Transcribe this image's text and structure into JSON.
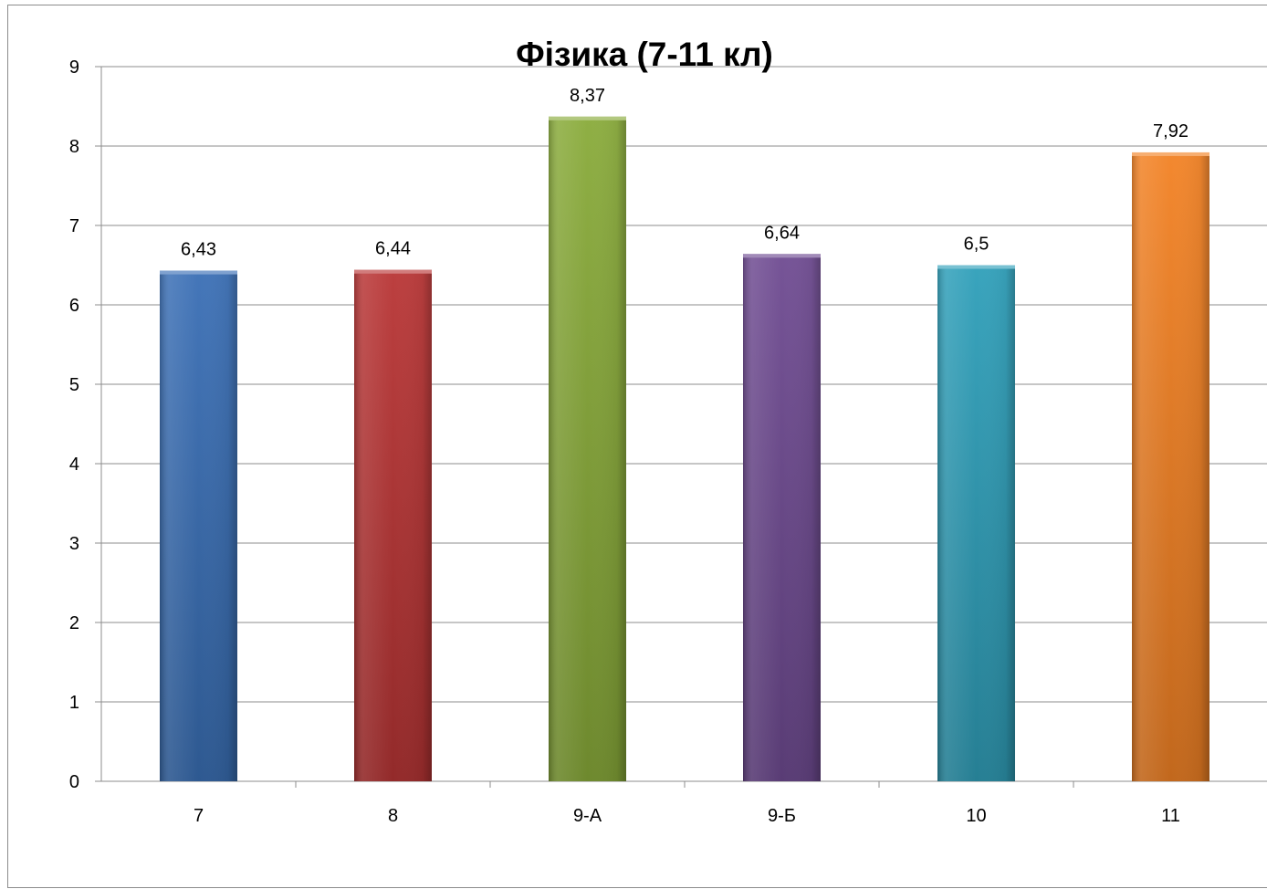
{
  "chart_data": {
    "type": "bar",
    "title": "Фізика (7-11 кл)",
    "xlabel": "",
    "ylabel": "",
    "categories": [
      "7",
      "8",
      "9-А",
      "9-Б",
      "10",
      "11"
    ],
    "values": [
      6.43,
      6.44,
      8.37,
      6.64,
      6.5,
      7.92
    ],
    "data_labels": [
      "6,43",
      "6,44",
      "8,37",
      "6,64",
      "6,5",
      "7,92"
    ],
    "ylim": [
      0,
      9
    ],
    "y_ticks": [
      "0",
      "1",
      "2",
      "3",
      "4",
      "5",
      "6",
      "7",
      "8",
      "9"
    ],
    "grid": true,
    "legend": "none",
    "colors": [
      "#3a6fb5",
      "#b83535",
      "#89ab3a",
      "#6f4b92",
      "#2f9fb9",
      "#f28224"
    ]
  }
}
